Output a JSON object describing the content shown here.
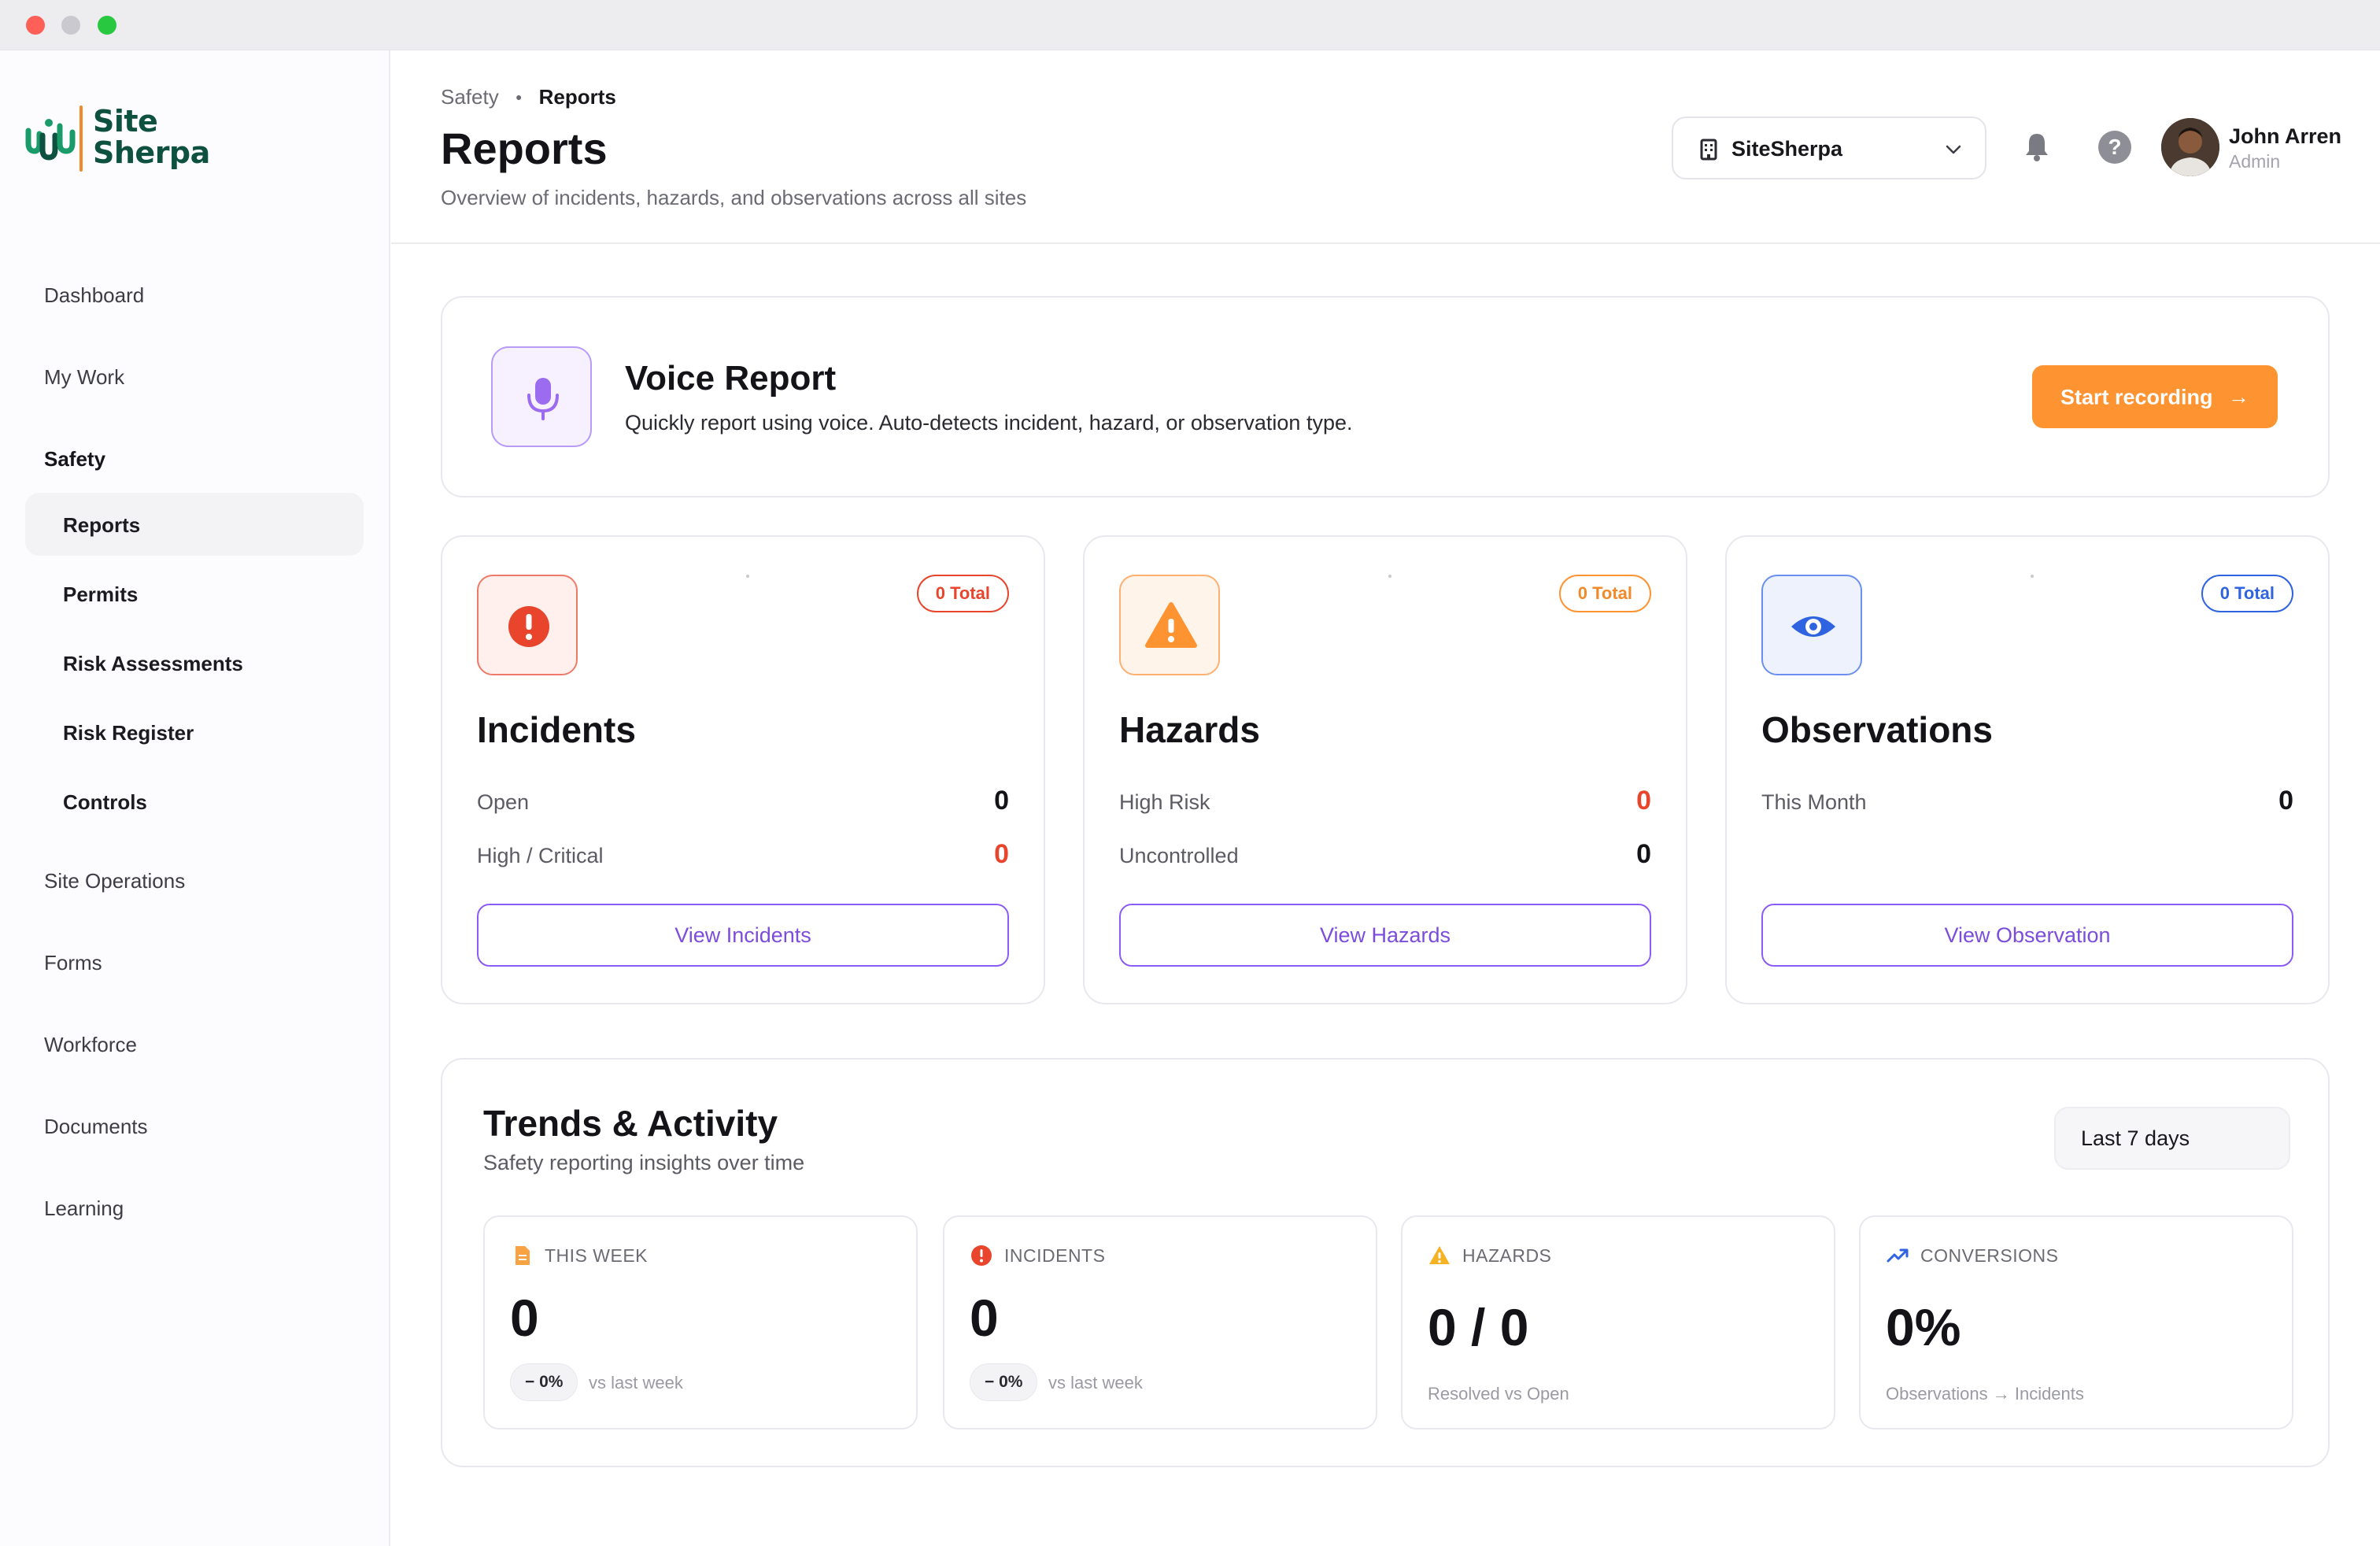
{
  "app": {
    "logo_line1": "Site",
    "logo_line2": "Sherpa"
  },
  "sidebar": {
    "items": [
      {
        "label": "Dashboard"
      },
      {
        "label": "My Work"
      },
      {
        "label": "Safety"
      },
      {
        "label": "Site Operations"
      },
      {
        "label": "Forms"
      },
      {
        "label": "Workforce"
      },
      {
        "label": "Documents"
      },
      {
        "label": "Learning"
      }
    ],
    "safety_sub": [
      {
        "label": "Reports",
        "active": true
      },
      {
        "label": "Permits"
      },
      {
        "label": "Risk Assessments"
      },
      {
        "label": "Risk Register"
      },
      {
        "label": "Controls"
      }
    ]
  },
  "header": {
    "breadcrumb": [
      "Safety",
      "Reports"
    ],
    "title": "Reports",
    "subtitle": "Overview of incidents, hazards, and observations across all sites",
    "site_selector": "SiteSherpa",
    "user": {
      "name": "John Arren",
      "role": "Admin"
    }
  },
  "icons": {
    "site": "building-icon",
    "chevron": "chevron-down-icon",
    "notifications": "bell-icon",
    "help": "help-icon",
    "help_glyph": "?",
    "voice": "microphone-icon",
    "record": "arrow-right-icon",
    "incidents": "alert-circle-icon",
    "hazards": "warning-triangle-icon",
    "observations": "eye-icon",
    "this_week": "document-icon",
    "conversions": "trending-up-icon"
  },
  "voice_report": {
    "title": "Voice Report",
    "description": "Quickly report using voice. Auto-detects incident, hazard, or observation type.",
    "button": "Start recording",
    "button_arrow": "→"
  },
  "cards": {
    "incidents": {
      "title": "Incidents",
      "badge": "0 Total",
      "color": "#e8452c",
      "rows": [
        {
          "label": "Open",
          "value": "0"
        },
        {
          "label": "High / Critical",
          "value": "0"
        }
      ],
      "button": "View Incidents"
    },
    "hazards": {
      "title": "Hazards",
      "badge": "0 Total",
      "color": "#fe9332",
      "rows": [
        {
          "label": "High Risk",
          "value": "0"
        },
        {
          "label": "Uncontrolled",
          "value": "0"
        }
      ],
      "button": "View Hazards"
    },
    "observations": {
      "title": "Observations",
      "badge": "0 Total",
      "color": "#2f63e0",
      "rows": [
        {
          "label": "This Month",
          "value": "0"
        }
      ],
      "button": "View Observation"
    }
  },
  "trends": {
    "title": "Trends & Activity",
    "subtitle": "Safety reporting insights over time",
    "range": "Last 7 days",
    "metrics": {
      "this_week": {
        "label": "THIS WEEK",
        "value": "0",
        "change": "− 0%",
        "note": "vs last week"
      },
      "incidents": {
        "label": "INCIDENTS",
        "value": "0",
        "change": "− 0%",
        "note": "vs last week"
      },
      "hazards": {
        "label": "HAZARDS",
        "value": "0 / 0",
        "note": "Resolved vs Open"
      },
      "conversions": {
        "label": "CONVERSIONS",
        "value": "0%",
        "note": "Observations → Incidents"
      }
    }
  },
  "colors": {
    "accent_purple": "#8b5cf6",
    "brand_green": "#0e5140",
    "brand_orange": "#f0892b",
    "record_orange": "#fe9332"
  }
}
